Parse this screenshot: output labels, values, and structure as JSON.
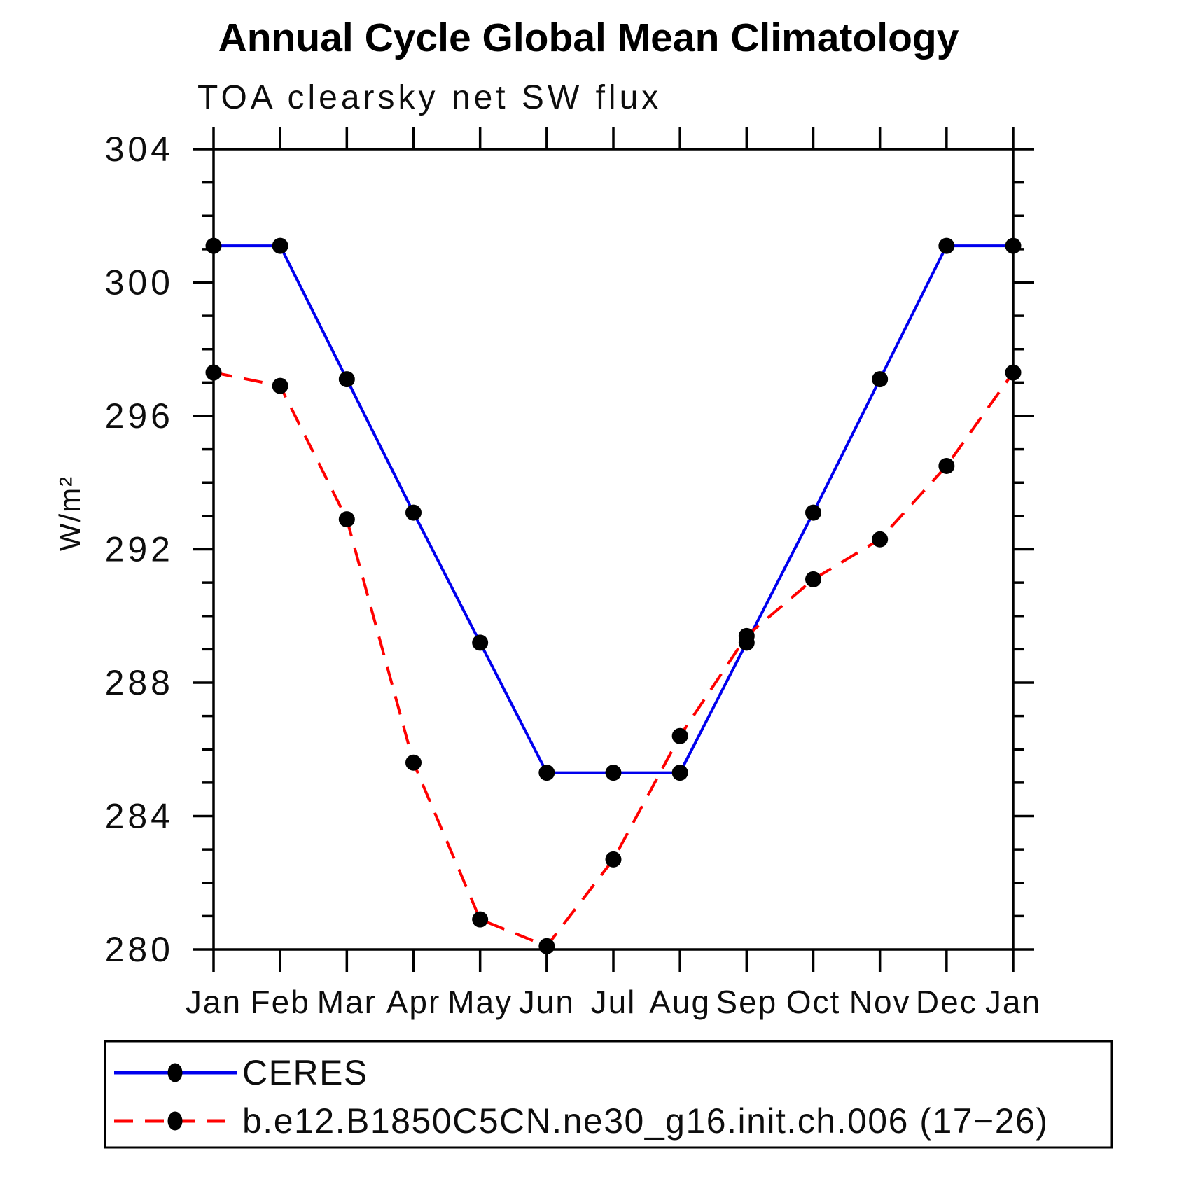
{
  "chart_data": {
    "type": "line",
    "title": "Annual Cycle Global Mean Climatology",
    "subtitle": "TOA clearsky net SW flux",
    "ylabel": "W/m²",
    "x_tick_labels": [
      "Jan",
      "Feb",
      "Mar",
      "Apr",
      "May",
      "Jun",
      "Jul",
      "Aug",
      "Sep",
      "Oct",
      "Nov",
      "Dec",
      "Jan"
    ],
    "y_ticks": [
      304,
      300,
      296,
      292,
      288,
      284,
      280
    ],
    "ylim": [
      280,
      304
    ],
    "y_minor_step": 1,
    "grid": false,
    "legend_position": "bottom-left-box",
    "axis_color": "#000000",
    "marker_color": "#000000",
    "series": [
      {
        "name": "CERES",
        "color": "#0000ee",
        "style": "solid",
        "marker": "circle",
        "values": [
          301.1,
          301.1,
          297.1,
          293.1,
          289.2,
          285.3,
          285.3,
          285.3,
          289.2,
          293.1,
          297.1,
          301.1,
          301.1
        ]
      },
      {
        "name": "b.e12.B1850C5CN.ne30_g16.init.ch.006 (17−26)",
        "color": "#ff0000",
        "style": "dashed",
        "marker": "circle",
        "values": [
          297.3,
          296.9,
          292.9,
          285.6,
          280.9,
          280.1,
          282.7,
          286.4,
          289.4,
          291.1,
          292.3,
          294.5,
          297.3
        ]
      }
    ]
  }
}
